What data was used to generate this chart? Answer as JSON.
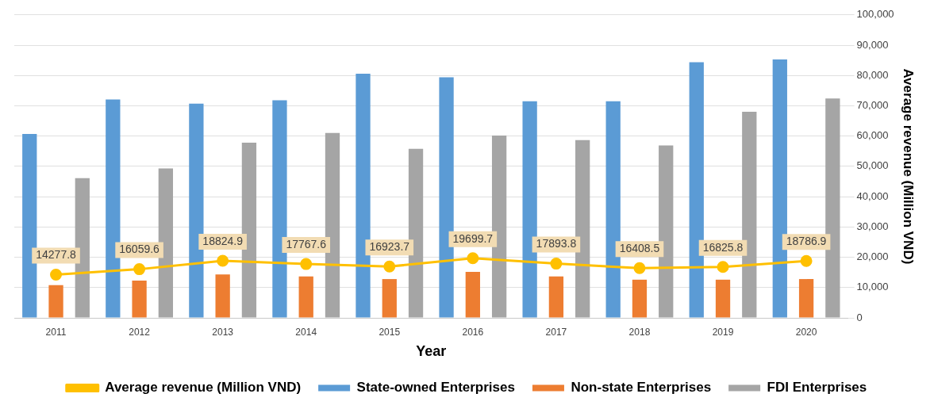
{
  "chart_data": {
    "type": "bar",
    "xlabel": "Year",
    "ylabel": "Average revenue (Million VND)",
    "categories": [
      "2011",
      "2012",
      "2013",
      "2014",
      "2015",
      "2016",
      "2017",
      "2018",
      "2019",
      "2020"
    ],
    "series": [
      {
        "name": "State-owned Enterprises",
        "color": "#5b9bd5",
        "values": [
          60700,
          72100,
          70700,
          71800,
          80600,
          79400,
          71500,
          71500,
          84400,
          85300
        ]
      },
      {
        "name": "Non-state Enterprises",
        "color": "#ed7d31",
        "values": [
          10800,
          12300,
          14300,
          13700,
          12800,
          15200,
          13700,
          12600,
          12600,
          12800
        ]
      },
      {
        "name": "FDI Enterprises",
        "color": "#a5a5a5",
        "values": [
          46100,
          49300,
          57800,
          61000,
          55800,
          60200,
          58700,
          56900,
          68000,
          72400
        ]
      },
      {
        "name": "Average revenue (Million VND)",
        "type": "line",
        "color": "#ffc000",
        "marker": "circle",
        "values": [
          14277.8,
          16059.6,
          18824.9,
          17767.6,
          16923.7,
          19699.7,
          17893.8,
          16408.5,
          16825.8,
          18786.9
        ],
        "value_labels": [
          "14277.8",
          "16059.6",
          "18824.9",
          "17767.6",
          "16923.7",
          "19699.7",
          "17893.8",
          "16408.5",
          "16825.8",
          "18786.9"
        ]
      }
    ],
    "ylim": [
      0,
      100000
    ],
    "yticks": [
      {
        "value": 0,
        "label": "0"
      },
      {
        "value": 10000,
        "label": "10,000"
      },
      {
        "value": 20000,
        "label": "20,000"
      },
      {
        "value": 30000,
        "label": "30,000"
      },
      {
        "value": 40000,
        "label": "40,000"
      },
      {
        "value": 50000,
        "label": "50,000"
      },
      {
        "value": 60000,
        "label": "60,000"
      },
      {
        "value": 70000,
        "label": "70,000"
      },
      {
        "value": 80000,
        "label": "80,000"
      },
      {
        "value": 90000,
        "label": "90,000"
      },
      {
        "value": 100000,
        "label": "100,000"
      }
    ],
    "grid": "y",
    "legend": "bottom"
  }
}
